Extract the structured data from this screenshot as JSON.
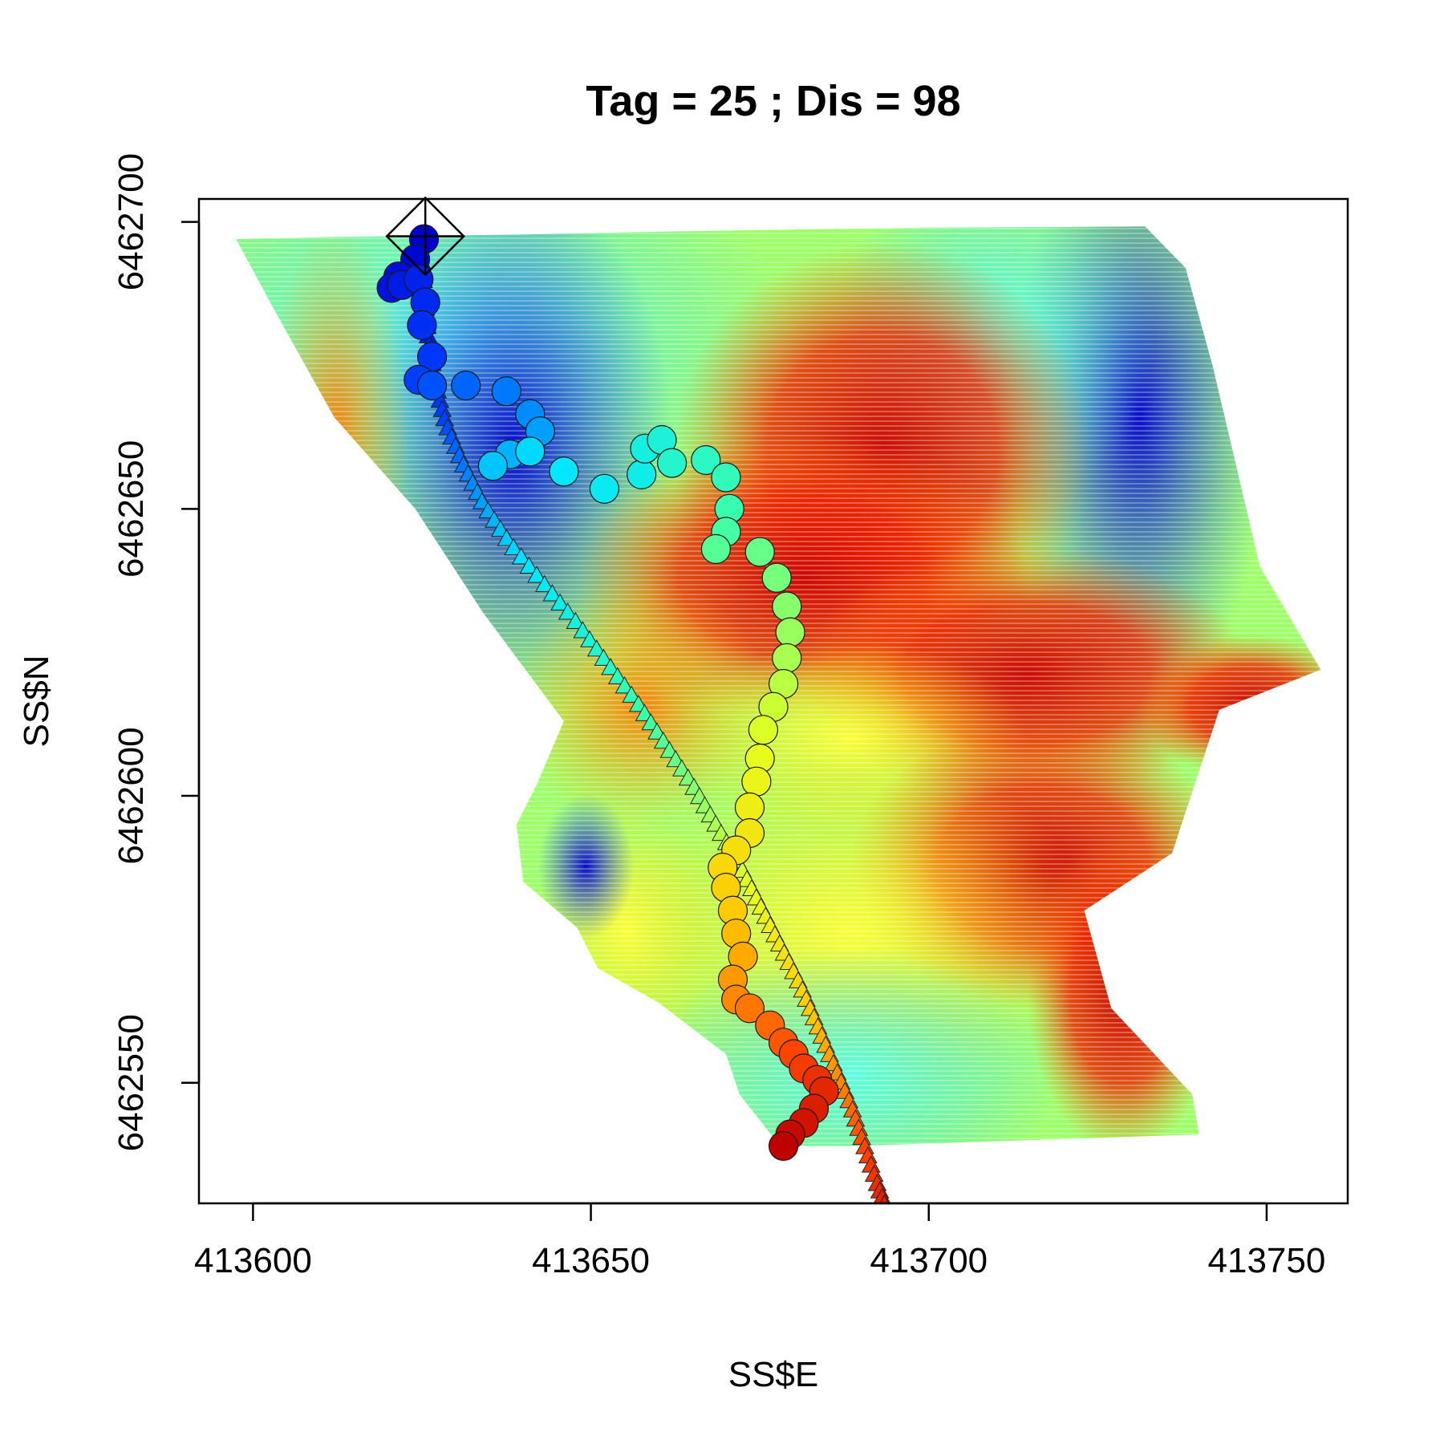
{
  "chart_data": {
    "type": "scatter",
    "title": "Tag = 25 ; Dis = 98",
    "xlabel": "SS$E",
    "ylabel": "SS$N",
    "xlim": [
      413592,
      413762
    ],
    "ylim": [
      6462529,
      6462704
    ],
    "x_ticks": [
      413600,
      413650,
      413700,
      413750
    ],
    "x_tick_labels": [
      "413600",
      "413650",
      "413700",
      "413750"
    ],
    "y_ticks": [
      6462550,
      6462600,
      6462650,
      6462700
    ],
    "y_tick_labels": [
      "6462550",
      "6462600",
      "6462650",
      "6462700"
    ],
    "grid": false,
    "legend": "none",
    "background_field": {
      "type": "heatmap",
      "colormap": [
        "#0000cc",
        "#1f5fff",
        "#33ddff",
        "#55ffaa",
        "#ffff00",
        "#ff9900",
        "#ff3300",
        "#cc0000"
      ],
      "footprint_outline_E": [
        413597.5,
        413609,
        413626,
        413640,
        413648,
        413656,
        413665,
        413688,
        413699,
        413716,
        413732,
        413738,
        413742,
        413749,
        413758,
        413743,
        413736,
        413723,
        413727,
        413739,
        413740,
        413689,
        413678,
        413672,
        413670,
        413660,
        413651,
        413648,
        413640,
        413639,
        413642,
        413646,
        413634,
        413624,
        413612,
        413603,
        413597.5
      ],
      "footprint_outline_N": [
        6462697,
        6462697.3,
        6462697.6,
        6462697.8,
        6462698,
        6462698.2,
        6462698.4,
        6462698.8,
        6462699,
        6462699.1,
        6462699.2,
        6462692,
        6462675,
        6462640,
        6462622,
        6462615,
        6462590,
        6462580,
        6462563,
        6462548,
        6462541,
        6462539,
        6462539,
        6462548,
        6462555,
        6462564,
        6462570,
        6462577,
        6462585,
        6462595,
        6462602,
        6462613,
        6462632,
        6462650,
        6462666,
        6462685,
        6462697
      ]
    },
    "series": [
      {
        "marker": "circle",
        "color_scale": "blue-to-red",
        "E": [
          413625.3,
          413624.0,
          413621.5,
          413620.5,
          413622.0,
          413624.5,
          413625.5,
          413625.0,
          413626.5,
          413624.5,
          413626.5,
          413631.5,
          413637.5,
          413641.0,
          413642.5,
          413638.0,
          413635.5,
          413641.0,
          413646.0,
          413652.0,
          413657.5,
          413658.0,
          413660.5,
          413662.0,
          413667.0,
          413670.0,
          413670.5,
          413670.0,
          413668.5,
          413675.0,
          413677.5,
          413679.0,
          413679.5,
          413679.0,
          413678.5,
          413677.0,
          413675.5,
          413675.0,
          413674.5,
          413673.5,
          413673.5,
          413671.5,
          413669.5,
          413670.0,
          413671.0,
          413671.5,
          413672.5,
          413671.0,
          413671.5,
          413673.5,
          413676.5,
          413678.5,
          413680.0,
          413681.5,
          413683.5,
          413684.5,
          413683.0,
          413681.5,
          413679.5,
          413678.5
        ],
        "N": [
          6462697.0,
          6462693.5,
          6462690.5,
          6462688.5,
          6462689.0,
          6462690.0,
          6462686.0,
          6462682.0,
          6462676.5,
          6462672.5,
          6462671.5,
          6462671.5,
          6462670.5,
          6462666.5,
          6462663.5,
          6462659.5,
          6462657.5,
          6462660.0,
          6462656.5,
          6462653.5,
          6462656.0,
          6462660.5,
          6462662.0,
          6462658.0,
          6462658.5,
          6462655.5,
          6462650.0,
          6462646.0,
          6462643.0,
          6462642.5,
          6462638.0,
          6462633.0,
          6462628.5,
          6462624.0,
          6462619.5,
          6462615.5,
          6462611.5,
          6462606.5,
          6462602.5,
          6462598.0,
          6462593.5,
          6462590.5,
          6462587.5,
          6462584.0,
          6462580.0,
          6462576.0,
          6462572.0,
          6462568.0,
          6462564.5,
          6462563.0,
          6462560.0,
          6462557.0,
          6462555.0,
          6462552.5,
          6462550.5,
          6462548.5,
          6462545.5,
          6462543.0,
          6462541.0,
          6462539.0
        ]
      },
      {
        "marker": "triangle",
        "color_scale": "blue-to-red",
        "E": [
          413625,
          413625.5,
          413626,
          413627,
          413628.5,
          413631,
          413634,
          413638,
          413643,
          413648,
          413652.5,
          413657,
          413661,
          413665,
          413668.5,
          413672,
          413675,
          413678,
          413681,
          413683.5,
          413686,
          413688.5,
          413690.5,
          413692.5,
          413694,
          413695.5
        ],
        "N": [
          6462693,
          6462686,
          6462679,
          6462672,
          6462665,
          6462658,
          6462651,
          6462644,
          6462637,
          6462630,
          6462623,
          6462616,
          6462609,
          6462602,
          6462595,
          6462588,
          6462581,
          6462574,
          6462567,
          6462560,
          6462553,
          6462546,
          6462539,
          6462532,
          6462527,
          6462523
        ]
      }
    ],
    "receiver": {
      "E": 413625.5,
      "N": 6462697.5,
      "marker": "diamond-with-cross"
    }
  }
}
